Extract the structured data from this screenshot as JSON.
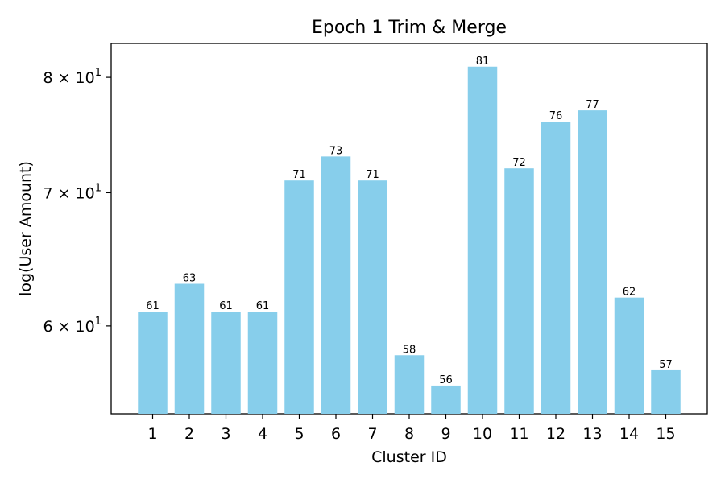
{
  "chart_data": {
    "type": "bar",
    "title": "Epoch 1 Trim & Merge",
    "xlabel": "Cluster ID",
    "ylabel": "log(User Amount)",
    "y_scale": "log",
    "categories": [
      "1",
      "2",
      "3",
      "4",
      "5",
      "6",
      "7",
      "8",
      "9",
      "10",
      "11",
      "12",
      "13",
      "14",
      "15"
    ],
    "values": [
      61,
      63,
      61,
      61,
      71,
      73,
      71,
      58,
      56,
      81,
      72,
      76,
      77,
      62,
      57
    ],
    "data_labels": [
      "61",
      "63",
      "61",
      "61",
      "71",
      "73",
      "71",
      "58",
      "56",
      "81",
      "72",
      "76",
      "77",
      "62",
      "57"
    ],
    "ylim": [
      54.2,
      83.2
    ],
    "y_ticks": [
      {
        "value": 60,
        "label": "6 × 10",
        "exponent": "1"
      },
      {
        "value": 70,
        "label": "7 × 10",
        "exponent": "1"
      },
      {
        "value": 80,
        "label": "8 × 10",
        "exponent": "1"
      }
    ],
    "bar_color": "#87CEEB",
    "grid": false,
    "legend": "none"
  }
}
